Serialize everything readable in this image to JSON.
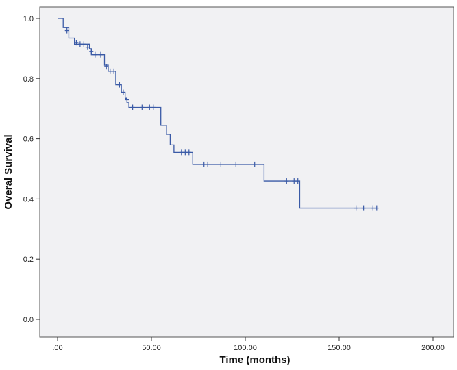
{
  "chart_data": {
    "type": "line",
    "subtype": "kaplan-meier step curve with censor marks",
    "xlabel": "Time (months)",
    "ylabel": "Overal Survival",
    "xlim": [
      0,
      200
    ],
    "ylim": [
      0,
      1.0
    ],
    "x_ticks": [
      ".00",
      "50.00",
      "100.00",
      "150.00",
      "200.00"
    ],
    "x_tick_values": [
      0,
      50,
      100,
      150,
      200
    ],
    "y_ticks": [
      "0.0",
      "0.2",
      "0.4",
      "0.6",
      "0.8",
      "1.0"
    ],
    "y_tick_values": [
      0,
      0.2,
      0.4,
      0.6,
      0.8,
      1.0
    ],
    "grid": false,
    "colors": {
      "curve": "#3a5aa6",
      "plot_bg": "#f1f1f3",
      "frame": "#555555"
    },
    "series": [
      {
        "steps": [
          [
            0,
            1.0
          ],
          [
            3,
            0.97
          ],
          [
            6,
            0.935
          ],
          [
            9,
            0.915
          ],
          [
            17,
            0.9
          ],
          [
            18,
            0.88
          ],
          [
            25,
            0.845
          ],
          [
            27,
            0.825
          ],
          [
            31,
            0.78
          ],
          [
            34,
            0.755
          ],
          [
            36,
            0.735
          ],
          [
            37,
            0.72
          ],
          [
            38,
            0.705
          ],
          [
            55,
            0.645
          ],
          [
            58,
            0.615
          ],
          [
            60,
            0.58
          ],
          [
            62,
            0.555
          ],
          [
            72,
            0.515
          ],
          [
            110,
            0.46
          ],
          [
            129,
            0.37
          ],
          [
            170,
            0.37
          ]
        ],
        "censored": [
          [
            5,
            0.96
          ],
          [
            10,
            0.92
          ],
          [
            12,
            0.915
          ],
          [
            14,
            0.915
          ],
          [
            16,
            0.905
          ],
          [
            18,
            0.89
          ],
          [
            20,
            0.88
          ],
          [
            23,
            0.88
          ],
          [
            26,
            0.84
          ],
          [
            28,
            0.825
          ],
          [
            30,
            0.825
          ],
          [
            33,
            0.78
          ],
          [
            35,
            0.755
          ],
          [
            37,
            0.73
          ],
          [
            40,
            0.705
          ],
          [
            45,
            0.705
          ],
          [
            49,
            0.705
          ],
          [
            51,
            0.705
          ],
          [
            66,
            0.555
          ],
          [
            68,
            0.555
          ],
          [
            70,
            0.555
          ],
          [
            78,
            0.515
          ],
          [
            80,
            0.515
          ],
          [
            87,
            0.515
          ],
          [
            95,
            0.515
          ],
          [
            105,
            0.515
          ],
          [
            122,
            0.46
          ],
          [
            126,
            0.46
          ],
          [
            128,
            0.46
          ],
          [
            159,
            0.37
          ],
          [
            163,
            0.37
          ],
          [
            168,
            0.37
          ],
          [
            170,
            0.37
          ]
        ]
      }
    ]
  }
}
